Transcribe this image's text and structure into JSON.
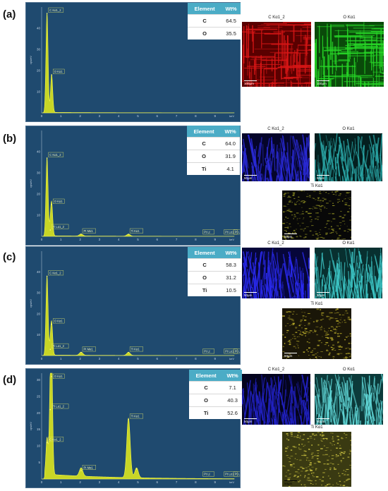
{
  "panels": [
    {
      "label": "(a)",
      "table": {
        "header": [
          "Element",
          "Wt%"
        ],
        "rows": [
          [
            "C",
            "64.5"
          ],
          [
            "O",
            "35.5"
          ]
        ]
      },
      "maps": [
        {
          "title": "C Kα1_2",
          "color": "#d81616",
          "base": "#5a0000",
          "scale": "100µm"
        },
        {
          "title": "O Kα1",
          "color": "#27d627",
          "base": "#0a4a0a",
          "scale": "100µm"
        }
      ]
    },
    {
      "label": "(b)",
      "table": {
        "header": [
          "Element",
          "Wt%"
        ],
        "rows": [
          [
            "C",
            "64.0"
          ],
          [
            "O",
            "31.9"
          ],
          [
            "Ti",
            "4.1"
          ]
        ]
      },
      "maps": [
        {
          "title": "C Kα1_2",
          "color": "#2a2ad8",
          "base": "#05052a",
          "scale": "50µm"
        },
        {
          "title": "O Kα1",
          "color": "#2aa6a6",
          "base": "#041f1f",
          "scale": "50µm"
        },
        {
          "title": "Ti Kα1",
          "color": "#8a8a22",
          "base": "#080808",
          "scale": "50µm"
        }
      ]
    },
    {
      "label": "(c)",
      "table": {
        "header": [
          "Element",
          "Wt%"
        ],
        "rows": [
          [
            "C",
            "58.3"
          ],
          [
            "O",
            "31.2"
          ],
          [
            "Ti",
            "10.5"
          ]
        ]
      },
      "maps": [
        {
          "title": "C Kα1_2",
          "color": "#2a2af0",
          "base": "#06063a",
          "scale": "50µm"
        },
        {
          "title": "O Kα1",
          "color": "#3cc4c4",
          "base": "#083030",
          "scale": "50µm"
        },
        {
          "title": "Ti Kα1",
          "color": "#b8aa2a",
          "base": "#1a1608",
          "scale": "50µm"
        }
      ]
    },
    {
      "label": "(d)",
      "table": {
        "header": [
          "Element",
          "Wt%"
        ],
        "rows": [
          [
            "C",
            "7.1"
          ],
          [
            "O",
            "40.3"
          ],
          [
            "Ti",
            "52.6"
          ]
        ]
      },
      "maps": [
        {
          "title": "C Kα1_2",
          "color": "#2222c8",
          "base": "#04041e",
          "scale": "50µm"
        },
        {
          "title": "O Kα1",
          "color": "#5fd4d4",
          "base": "#0c3a3a",
          "scale": "50µm"
        },
        {
          "title": "Ti Kα1",
          "color": "#c8c040",
          "base": "#3a3a12",
          "scale": "50µm"
        }
      ]
    }
  ],
  "chart_data": [
    {
      "type": "line",
      "xlabel": "keV",
      "ylabel": "cps/eV",
      "xlim": [
        0,
        10
      ],
      "ylim": [
        0,
        50
      ],
      "xticks": [
        0,
        1,
        2,
        3,
        4,
        5,
        6,
        7,
        8,
        9
      ],
      "yticks": [
        10,
        20,
        30,
        40
      ],
      "peaks": [
        {
          "x": 0.28,
          "y": 47
        },
        {
          "x": 0.52,
          "y": 18
        }
      ],
      "annotations": [
        {
          "text": "C Kα1_2",
          "x": 0.28,
          "y": 47
        },
        {
          "text": "O Kα1",
          "x": 0.52,
          "y": 18
        }
      ]
    },
    {
      "type": "line",
      "xlabel": "keV",
      "ylabel": "cps/eV",
      "xlim": [
        0,
        10
      ],
      "ylim": [
        0,
        50
      ],
      "xticks": [
        0,
        1,
        2,
        3,
        4,
        5,
        6,
        7,
        8,
        9
      ],
      "yticks": [
        10,
        20,
        30,
        40
      ],
      "peaks": [
        {
          "x": 0.28,
          "y": 37
        },
        {
          "x": 0.52,
          "y": 15
        },
        {
          "x": 0.45,
          "y": 3
        },
        {
          "x": 2.05,
          "y": 1
        },
        {
          "x": 4.51,
          "y": 1
        }
      ],
      "annotations": [
        {
          "text": "C Kα1_2",
          "x": 0.28,
          "y": 37
        },
        {
          "text": "O Kα1",
          "x": 0.52,
          "y": 15
        },
        {
          "text": "Ti Lα1_2",
          "x": 0.45,
          "y": 3
        },
        {
          "text": "Pt Mα1",
          "x": 2.05,
          "y": 1
        },
        {
          "text": "Ti Kα1",
          "x": 4.51,
          "y": 1
        },
        {
          "text": "Pt Lℓ",
          "x": 8.3,
          "y": 0.5
        },
        {
          "text": "Pt Lα1",
          "x": 9.4,
          "y": 0.5
        },
        {
          "text": "Pt Lβ",
          "x": 9.9,
          "y": 0.5
        }
      ]
    },
    {
      "type": "line",
      "xlabel": "keV",
      "ylabel": "cps/eV",
      "xlim": [
        0,
        10
      ],
      "ylim": [
        0,
        50
      ],
      "xticks": [
        0,
        1,
        2,
        3,
        4,
        5,
        6,
        7,
        8,
        9
      ],
      "yticks": [
        10,
        20,
        30,
        40
      ],
      "peaks": [
        {
          "x": 0.28,
          "y": 38
        },
        {
          "x": 0.52,
          "y": 15
        },
        {
          "x": 0.45,
          "y": 3
        },
        {
          "x": 2.05,
          "y": 1.5
        },
        {
          "x": 4.51,
          "y": 1.5
        }
      ],
      "annotations": [
        {
          "text": "C Kα1_2",
          "x": 0.28,
          "y": 38
        },
        {
          "text": "O Kα1",
          "x": 0.52,
          "y": 15
        },
        {
          "text": "Ti Lα1_2",
          "x": 0.45,
          "y": 3
        },
        {
          "text": "Pt Mα1",
          "x": 2.05,
          "y": 1.5
        },
        {
          "text": "Ti Kα1",
          "x": 4.51,
          "y": 1.5
        },
        {
          "text": "Pt Lℓ",
          "x": 8.3,
          "y": 0.5
        },
        {
          "text": "Pt Lα1",
          "x": 9.4,
          "y": 0.5
        },
        {
          "text": "Pt Lβ",
          "x": 9.9,
          "y": 0.5
        }
      ]
    },
    {
      "type": "line",
      "xlabel": "keV",
      "ylabel": "cps/eV",
      "xlim": [
        0,
        10
      ],
      "ylim": [
        0,
        32
      ],
      "xticks": [
        0,
        1,
        2,
        3,
        4,
        5,
        6,
        7,
        8,
        9
      ],
      "yticks": [
        5,
        10,
        15,
        20,
        25,
        30
      ],
      "peaks": [
        {
          "x": 0.28,
          "y": 11
        },
        {
          "x": 0.45,
          "y": 21
        },
        {
          "x": 0.52,
          "y": 31
        },
        {
          "x": 2.05,
          "y": 2.5
        },
        {
          "x": 4.51,
          "y": 18
        },
        {
          "x": 4.93,
          "y": 3
        }
      ],
      "annotations": [
        {
          "text": "O Kα1",
          "x": 0.52,
          "y": 31
        },
        {
          "text": "Ti Lα1_2",
          "x": 0.45,
          "y": 21
        },
        {
          "text": "C Kα1_2",
          "x": 0.28,
          "y": 11
        },
        {
          "text": "Pt Mα1",
          "x": 2.05,
          "y": 2.5
        },
        {
          "text": "Ti Kα1",
          "x": 4.51,
          "y": 18
        },
        {
          "text": "Pt Lℓ",
          "x": 8.3,
          "y": 0.5
        },
        {
          "text": "Pt Lα1",
          "x": 9.4,
          "y": 0.5
        },
        {
          "text": "Pt Lβ",
          "x": 9.9,
          "y": 0.5
        }
      ]
    }
  ]
}
